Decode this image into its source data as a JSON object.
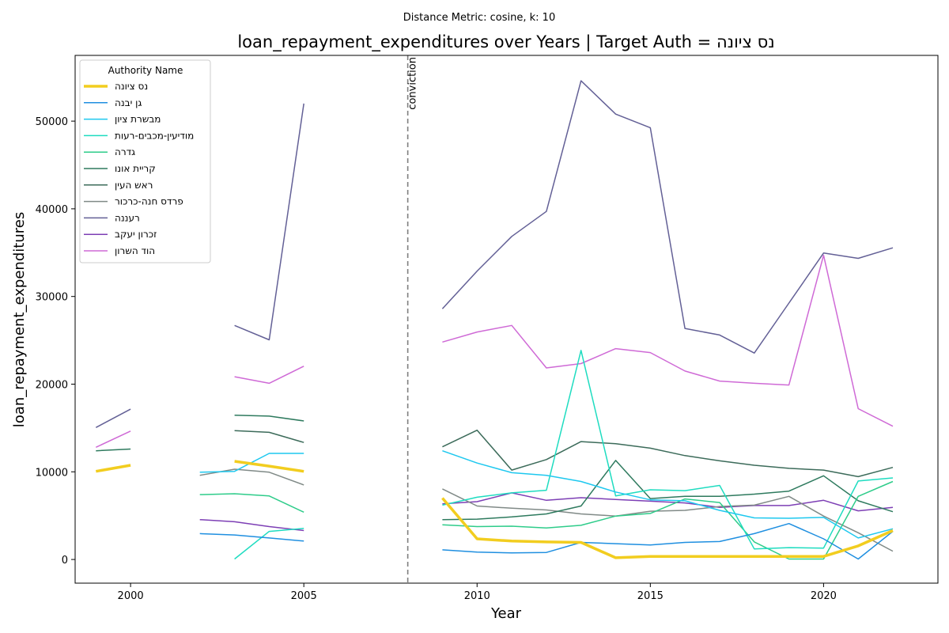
{
  "suptitle": "Distance Metric: cosine, k: 10",
  "chart_data": {
    "type": "line",
    "title": "loan_repayment_expenditures over Years | Target Auth = נס ציונה",
    "xlabel": "Year",
    "ylabel": "loan_repayment_expenditures",
    "xlim": [
      1998.4,
      2023.3
    ],
    "ylim": [
      -2700,
      57500
    ],
    "xticks": [
      2000,
      2005,
      2010,
      2015,
      2020
    ],
    "yticks": [
      0,
      10000,
      20000,
      30000,
      40000,
      50000
    ],
    "grid": false,
    "legend": {
      "title": "Authority Name",
      "placement": "upper-left"
    },
    "annotation": {
      "label": "conviction",
      "x": 2008
    },
    "x": [
      1999,
      2000,
      2001,
      2002,
      2003,
      2004,
      2005,
      2006,
      2007,
      2008,
      2009,
      2010,
      2011,
      2012,
      2013,
      2014,
      2015,
      2016,
      2017,
      2018,
      2019,
      2020,
      2021,
      2022
    ],
    "series": [
      {
        "name": "נס ציונה",
        "color": "#f2cd1f",
        "width": 3.5,
        "values": [
          10050,
          10750,
          null,
          null,
          11200,
          10650,
          10050,
          null,
          null,
          null,
          7000,
          2350,
          2100,
          2000,
          1950,
          200,
          350,
          350,
          350,
          350,
          350,
          350,
          1550,
          3300
        ]
      },
      {
        "name": "גן יבנה",
        "color": "#1f8fe0",
        "width": 1.5,
        "values": [
          null,
          null,
          null,
          2950,
          2800,
          2450,
          2100,
          null,
          null,
          null,
          1100,
          850,
          750,
          800,
          1950,
          1800,
          1650,
          1950,
          2050,
          2950,
          4100,
          2350,
          50,
          3200
        ]
      },
      {
        "name": "מבשרת ציון",
        "color": "#1ec8ef",
        "width": 1.5,
        "values": [
          null,
          null,
          null,
          9950,
          10050,
          12100,
          12100,
          null,
          null,
          null,
          12400,
          11000,
          9900,
          9600,
          8900,
          7700,
          6800,
          6700,
          5600,
          4750,
          4700,
          4800,
          2450,
          3500
        ]
      },
      {
        "name": "מודיעין-מכבים-רעות",
        "color": "#1edcc0",
        "width": 1.5,
        "values": [
          null,
          null,
          null,
          null,
          50,
          3200,
          3550,
          null,
          null,
          null,
          6200,
          7100,
          7600,
          7900,
          23850,
          7250,
          7950,
          7850,
          8450,
          1200,
          1350,
          1300,
          8950,
          9300
        ]
      },
      {
        "name": "גדרה",
        "color": "#2ecc8a",
        "width": 1.5,
        "values": [
          null,
          null,
          null,
          7400,
          7500,
          7250,
          5400,
          null,
          null,
          null,
          3950,
          3750,
          3800,
          3600,
          3900,
          4950,
          5250,
          6900,
          6500,
          2000,
          50,
          50,
          7200,
          8900
        ]
      },
      {
        "name": "קריית אונו",
        "color": "#2e7a5e",
        "width": 1.5,
        "values": [
          12400,
          12600,
          null,
          null,
          16450,
          16350,
          15800,
          null,
          null,
          null,
          4550,
          4600,
          4850,
          5200,
          6100,
          11300,
          6950,
          7200,
          7200,
          7450,
          7800,
          9550,
          6700,
          5450
        ]
      },
      {
        "name": "ראש העין",
        "color": "#3c6b5a",
        "width": 1.5,
        "values": [
          null,
          null,
          null,
          null,
          14700,
          14500,
          13350,
          null,
          null,
          null,
          12850,
          14750,
          10200,
          11400,
          13450,
          13200,
          12700,
          11850,
          11250,
          10750,
          10400,
          10200,
          9450,
          10500
        ]
      },
      {
        "name": "פרדס חנה-כרכור",
        "color": "#808a87",
        "width": 1.5,
        "values": [
          null,
          null,
          null,
          9600,
          10300,
          9950,
          8500,
          null,
          null,
          null,
          8050,
          6100,
          5850,
          5650,
          5200,
          4950,
          5500,
          5600,
          6050,
          6200,
          7200,
          4950,
          3050,
          950
        ]
      },
      {
        "name": "רעננה",
        "color": "#636096",
        "width": 1.5,
        "values": [
          15050,
          17150,
          null,
          null,
          26700,
          25050,
          52000,
          null,
          null,
          null,
          28600,
          32900,
          36850,
          39700,
          54600,
          50800,
          49250,
          26350,
          25600,
          23550,
          29250,
          34950,
          34350,
          35550
        ]
      },
      {
        "name": "זכרון יעקב",
        "color": "#7d3fb5",
        "width": 1.5,
        "values": [
          null,
          null,
          null,
          4550,
          4300,
          3750,
          3300,
          null,
          null,
          null,
          6350,
          6600,
          7600,
          6750,
          7050,
          6850,
          6650,
          6450,
          5950,
          6150,
          6150,
          6750,
          5550,
          5950
        ]
      },
      {
        "name": "הוד השרון",
        "color": "#cf6ad6",
        "width": 1.5,
        "values": [
          12800,
          14650,
          null,
          null,
          20850,
          20100,
          22050,
          null,
          null,
          null,
          24800,
          25950,
          26700,
          21850,
          22350,
          24050,
          23600,
          21500,
          20350,
          20100,
          19900,
          34700,
          17200,
          15200
        ]
      }
    ]
  }
}
